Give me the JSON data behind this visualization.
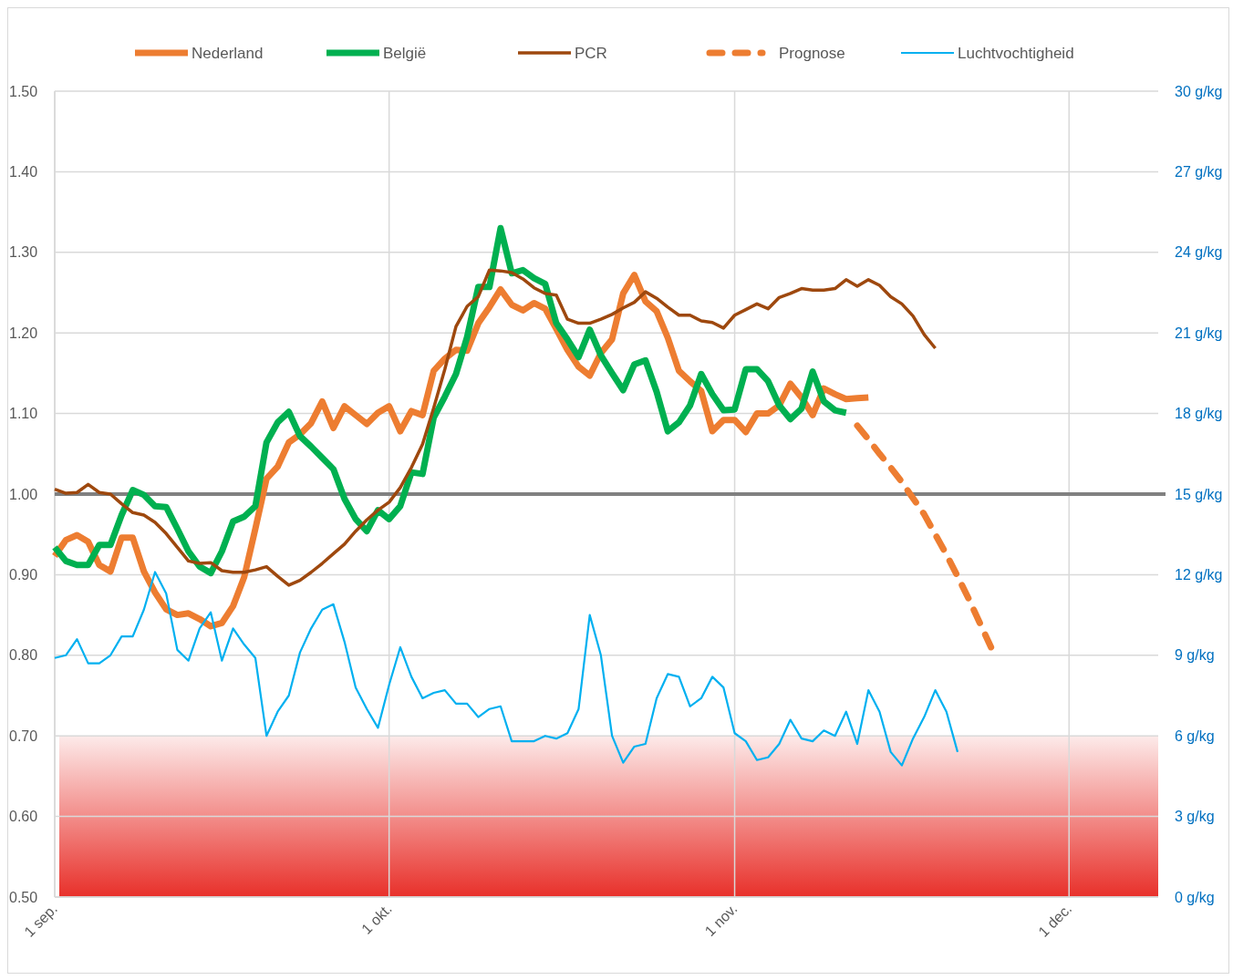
{
  "chart_data": {
    "type": "line",
    "x": [
      "--09-01",
      "--09-02",
      "--09-03",
      "--09-04",
      "--09-05",
      "--09-06",
      "--09-07",
      "--09-08",
      "--09-09",
      "--09-10",
      "--09-11",
      "--09-12",
      "--09-13",
      "--09-14",
      "--09-15",
      "--09-16",
      "--09-17",
      "--09-18",
      "--09-19",
      "--09-20",
      "--09-21",
      "--09-22",
      "--09-23",
      "--09-24",
      "--09-25",
      "--09-26",
      "--09-27",
      "--09-28",
      "--09-29",
      "--09-30",
      "--10-01",
      "--10-02",
      "--10-03",
      "--10-04",
      "--10-05",
      "--10-06",
      "--10-07",
      "--10-08",
      "--10-09",
      "--10-10",
      "--10-11",
      "--10-12",
      "--10-13",
      "--10-14",
      "--10-15",
      "--10-16",
      "--10-17",
      "--10-18",
      "--10-19",
      "--10-20",
      "--10-21",
      "--10-22",
      "--10-23",
      "--10-24",
      "--10-25",
      "--10-26",
      "--10-27",
      "--10-28",
      "--10-29",
      "--10-30",
      "--10-31",
      "--11-01",
      "--11-02",
      "--11-03",
      "--11-04",
      "--11-05",
      "--11-06",
      "--11-07",
      "--11-08",
      "--11-09",
      "--11-10",
      "--11-11",
      "--11-12",
      "--11-13",
      "--11-14",
      "--11-15",
      "--11-16",
      "--11-17",
      "--11-18",
      "--11-19",
      "--11-20",
      "--11-21",
      "--11-22",
      "--11-23",
      "--11-24"
    ],
    "series": [
      {
        "name": "Nederland",
        "color": "#ed7d31",
        "values": [
          0.923,
          0.943,
          0.949,
          0.941,
          0.912,
          0.904,
          0.946,
          0.946,
          0.904,
          0.878,
          0.857,
          0.85,
          0.852,
          0.845,
          0.836,
          0.84,
          0.861,
          0.897,
          0.957,
          1.019,
          1.034,
          1.064,
          1.074,
          1.088,
          1.115,
          1.082,
          1.109,
          1.098,
          1.087,
          1.101,
          1.109,
          1.078,
          1.103,
          1.098,
          1.153,
          1.168,
          1.179,
          1.178,
          1.212,
          1.232,
          1.254,
          1.235,
          1.228,
          1.237,
          1.23,
          1.205,
          1.179,
          1.158,
          1.147,
          1.175,
          1.192,
          1.249,
          1.272,
          1.239,
          1.227,
          1.194,
          1.153,
          1.14,
          1.128,
          1.078,
          1.092,
          1.092,
          1.077,
          1.1,
          1.1,
          1.11,
          1.137,
          1.12,
          1.098,
          1.131,
          1.124,
          1.118,
          1.119,
          1.12,
          null,
          null,
          null,
          null,
          null,
          null,
          null,
          null,
          null,
          null,
          null
        ]
      },
      {
        "name": "België",
        "color": "#00b050",
        "values": [
          0.934,
          0.917,
          0.912,
          0.912,
          0.937,
          0.937,
          0.974,
          1.005,
          0.999,
          0.985,
          0.984,
          0.957,
          0.929,
          0.91,
          0.902,
          0.929,
          0.966,
          0.972,
          0.985,
          1.064,
          1.089,
          1.102,
          1.072,
          1.059,
          1.045,
          1.031,
          0.994,
          0.969,
          0.954,
          0.98,
          0.969,
          0.985,
          1.027,
          1.025,
          1.095,
          1.121,
          1.149,
          1.195,
          1.257,
          1.257,
          1.33,
          1.274,
          1.278,
          1.268,
          1.261,
          1.212,
          1.192,
          1.17,
          1.204,
          1.172,
          1.15,
          1.129,
          1.161,
          1.166,
          1.127,
          1.078,
          1.089,
          1.11,
          1.149,
          1.124,
          1.104,
          1.105,
          1.155,
          1.155,
          1.14,
          1.11,
          1.093,
          1.106,
          1.152,
          1.115,
          1.104,
          1.101,
          null,
          null,
          null,
          null,
          null,
          null,
          null,
          null,
          null,
          null,
          null,
          null,
          null
        ]
      },
      {
        "name": "PCR",
        "color": "#9e480e",
        "values": [
          1.006,
          1.001,
          1.002,
          1.012,
          1.002,
          1.0,
          0.988,
          0.977,
          0.974,
          0.965,
          0.951,
          0.934,
          0.917,
          0.914,
          0.915,
          0.905,
          0.903,
          0.903,
          0.906,
          0.91,
          0.898,
          0.887,
          0.893,
          0.903,
          0.914,
          0.926,
          0.938,
          0.954,
          0.968,
          0.98,
          0.99,
          1.008,
          1.033,
          1.062,
          1.107,
          1.155,
          1.208,
          1.233,
          1.245,
          1.278,
          1.277,
          1.275,
          1.267,
          1.256,
          1.249,
          1.247,
          1.217,
          1.212,
          1.212,
          1.217,
          1.223,
          1.231,
          1.238,
          1.251,
          1.243,
          1.232,
          1.222,
          1.222,
          1.215,
          1.213,
          1.206,
          1.222,
          1.229,
          1.236,
          1.23,
          1.244,
          1.249,
          1.255,
          1.253,
          1.253,
          1.255,
          1.266,
          1.258,
          1.266,
          1.259,
          1.245,
          1.236,
          1.221,
          1.198,
          1.181,
          null,
          null,
          null,
          null,
          null
        ]
      },
      {
        "name": "Prognose",
        "color": "#ed7d31",
        "line_style": "dashed",
        "values": [
          null,
          null,
          null,
          null,
          null,
          null,
          null,
          null,
          null,
          null,
          null,
          null,
          null,
          null,
          null,
          null,
          null,
          null,
          null,
          null,
          null,
          null,
          null,
          null,
          null,
          null,
          null,
          null,
          null,
          null,
          null,
          null,
          null,
          null,
          null,
          null,
          null,
          null,
          null,
          null,
          null,
          null,
          null,
          null,
          null,
          null,
          null,
          null,
          null,
          null,
          null,
          null,
          null,
          null,
          null,
          null,
          null,
          null,
          null,
          null,
          null,
          null,
          null,
          null,
          null,
          null,
          null,
          null,
          null,
          null,
          null,
          null,
          1.085,
          1.068,
          1.05,
          1.033,
          1.015,
          0.995,
          0.975,
          0.95,
          0.925,
          0.898,
          0.87,
          0.84,
          0.81
        ]
      },
      {
        "name": "Luchtvochtigheid",
        "color": "#00b0f0",
        "axis": "y2",
        "values": [
          8.9,
          9.0,
          9.6,
          8.7,
          8.7,
          9.0,
          9.7,
          9.7,
          10.7,
          12.1,
          11.3,
          9.2,
          8.8,
          10.0,
          10.6,
          8.8,
          10.0,
          9.4,
          8.9,
          6.0,
          6.9,
          7.5,
          9.1,
          10.0,
          10.7,
          10.9,
          9.5,
          7.8,
          7.0,
          6.3,
          7.9,
          9.3,
          8.2,
          7.4,
          7.6,
          7.7,
          7.2,
          7.2,
          6.7,
          7.0,
          7.1,
          5.8,
          5.8,
          5.8,
          6.0,
          5.9,
          6.1,
          7.0,
          10.5,
          9.0,
          6.0,
          5.0,
          5.6,
          5.7,
          7.4,
          8.3,
          8.2,
          7.1,
          7.4,
          8.2,
          7.8,
          6.1,
          5.8,
          5.1,
          5.2,
          5.7,
          6.6,
          5.9,
          5.8,
          6.2,
          6.0,
          6.9,
          5.7,
          7.7,
          6.9,
          5.4,
          4.9,
          5.9,
          6.7,
          7.7,
          6.9,
          5.4,
          null,
          null,
          null
        ]
      }
    ],
    "xlim": [
      "--09-01",
      "--12-09"
    ],
    "xticks": [
      {
        "value": "--09-01",
        "label": "1 sep."
      },
      {
        "value": "--10-01",
        "label": "1 okt."
      },
      {
        "value": "--11-01",
        "label": "1 nov."
      },
      {
        "value": "--12-01",
        "label": "1 dec."
      }
    ],
    "ylim": [
      0.5,
      1.5
    ],
    "yticks": [
      {
        "value": 0.5,
        "label": "0.50"
      },
      {
        "value": 0.6,
        "label": "0.60"
      },
      {
        "value": 0.7,
        "label": "0.70"
      },
      {
        "value": 0.8,
        "label": "0.80"
      },
      {
        "value": 0.9,
        "label": "0.90"
      },
      {
        "value": 1.0,
        "label": "1.00"
      },
      {
        "value": 1.1,
        "label": "1.10"
      },
      {
        "value": 1.2,
        "label": "1.20"
      },
      {
        "value": 1.3,
        "label": "1.30"
      },
      {
        "value": 1.4,
        "label": "1.40"
      },
      {
        "value": 1.5,
        "label": "1.50"
      }
    ],
    "y2lim": [
      0,
      30
    ],
    "y2ticks": [
      {
        "value": 0,
        "label": "0 g/kg"
      },
      {
        "value": 3,
        "label": "3 g/kg"
      },
      {
        "value": 6,
        "label": "6 g/kg"
      },
      {
        "value": 9,
        "label": "9 g/kg"
      },
      {
        "value": 12,
        "label": "12 g/kg"
      },
      {
        "value": 15,
        "label": "15 g/kg"
      },
      {
        "value": 18,
        "label": "18 g/kg"
      },
      {
        "value": 21,
        "label": "21 g/kg"
      },
      {
        "value": 24,
        "label": "24 g/kg"
      },
      {
        "value": 27,
        "label": "27 g/kg"
      },
      {
        "value": 30,
        "label": "30 g/kg"
      }
    ],
    "ref_lines": [
      {
        "axis": "y",
        "value": 1.0,
        "color": "#808080"
      }
    ],
    "bands": [
      {
        "axis": "y",
        "from": 0.5,
        "to": 0.7,
        "color": "#e8302a"
      }
    ],
    "grid": true,
    "legend": "top",
    "line_style": "solid"
  }
}
